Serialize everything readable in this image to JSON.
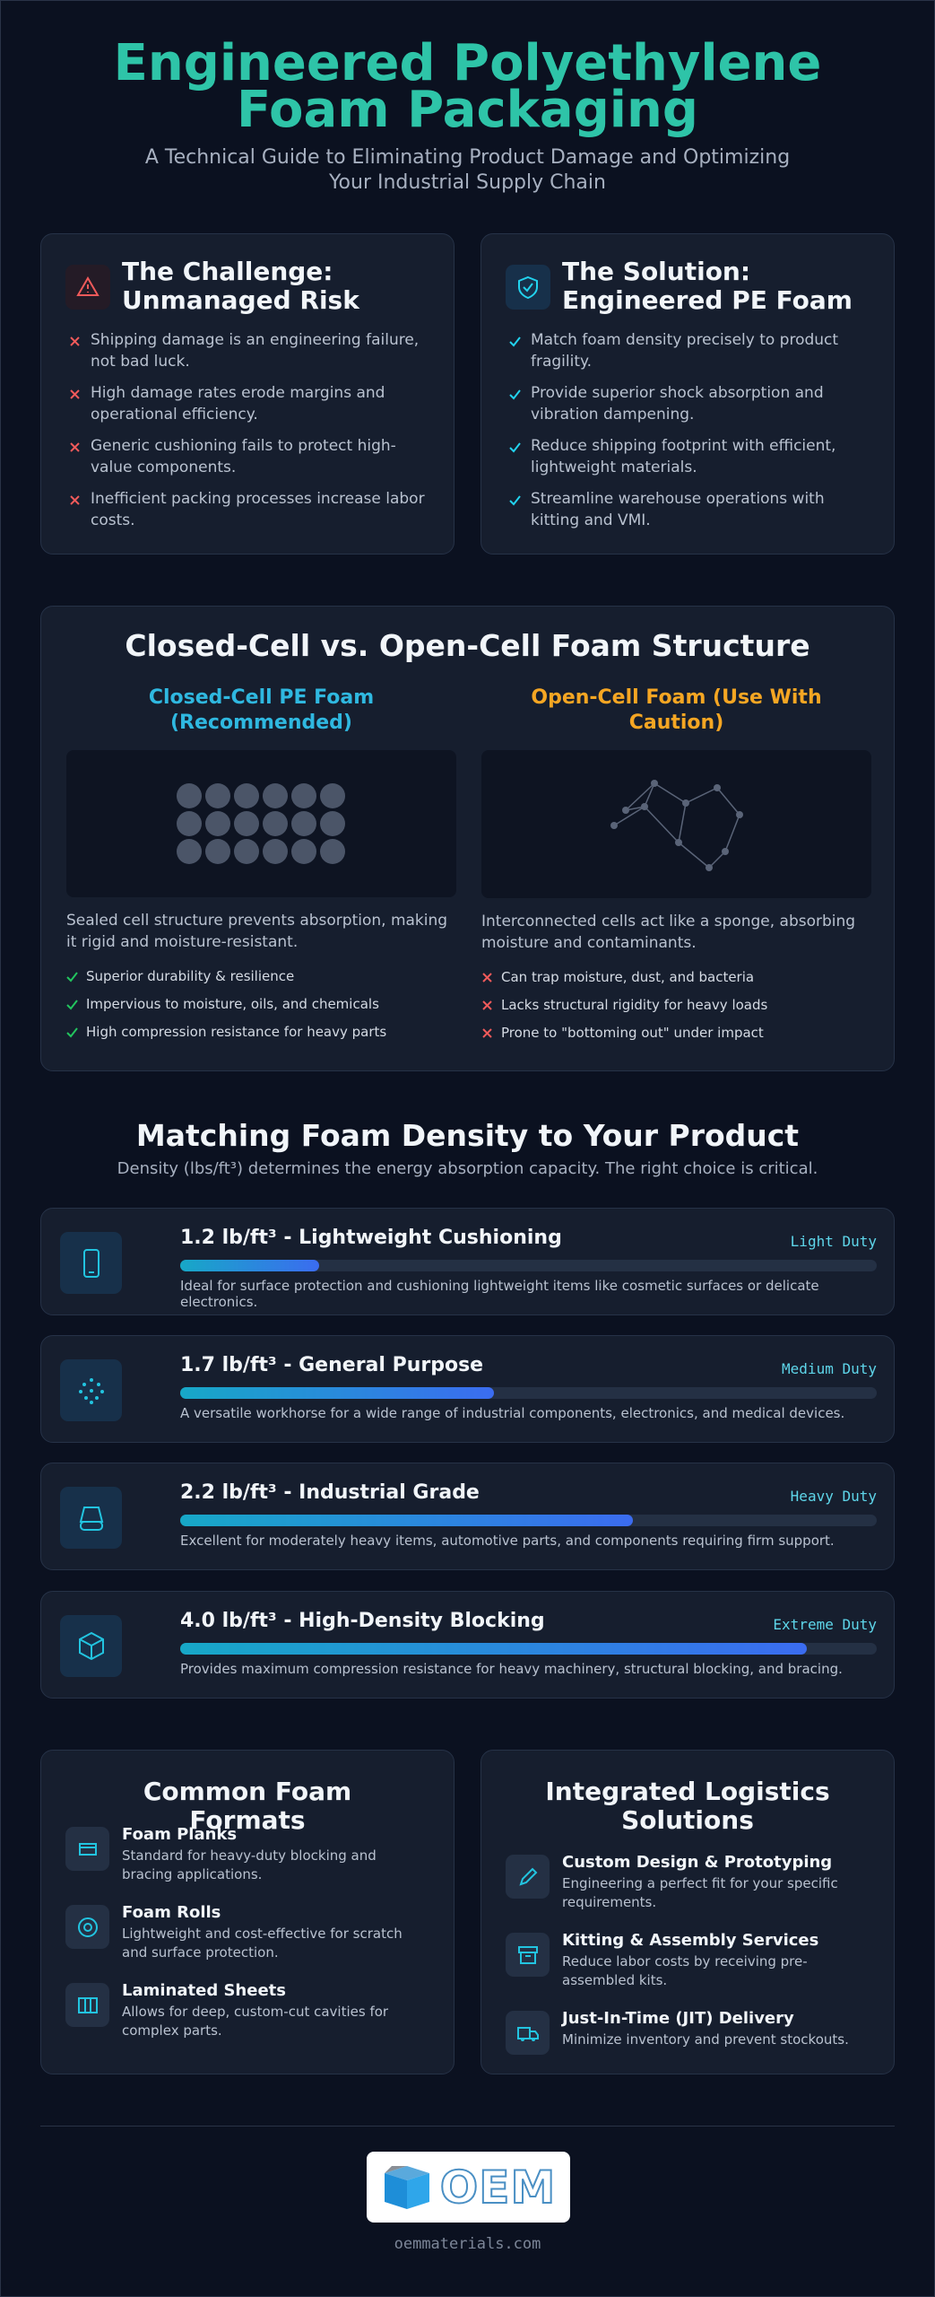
{
  "header": {
    "title": "Engineered Polyethylene Foam Packaging",
    "subtitle": "A Technical Guide to Eliminating Product Damage and Optimizing Your Industrial Supply Chain"
  },
  "challenge": {
    "title": "The Challenge: Unmanaged Risk",
    "items": [
      "Shipping damage is an engineering failure, not bad luck.",
      "High damage rates erode margins and operational efficiency.",
      "Generic cushioning fails to protect high-value components.",
      "Inefficient packing processes increase labor costs."
    ]
  },
  "solution": {
    "title": "The Solution: Engineered PE Foam",
    "items": [
      "Match foam density precisely to product fragility.",
      "Provide superior shock absorption and vibration dampening.",
      "Reduce shipping footprint with efficient, lightweight materials.",
      "Streamline warehouse operations with kitting and VMI."
    ]
  },
  "structure": {
    "title": "Closed-Cell vs. Open-Cell Foam Structure",
    "closed": {
      "title": "Closed-Cell PE Foam (Recommended)",
      "description": "Sealed cell structure prevents absorption, making it rigid and moisture-resistant.",
      "items": [
        "Superior durability & resilience",
        "Impervious to moisture, oils, and chemicals",
        "High compression resistance for heavy parts"
      ]
    },
    "open": {
      "title": "Open-Cell Foam (Use With Caution)",
      "description": "Interconnected cells act like a sponge, absorbing moisture and contaminants.",
      "items": [
        "Can trap moisture, dust, and bacteria",
        "Lacks structural rigidity for heavy loads",
        "Prone to \"bottoming out\" under impact"
      ]
    }
  },
  "density": {
    "title": "Matching Foam Density to Your Product",
    "subtitle": "Density (lbs/ft³) determines the energy absorption capacity. The right choice is critical.",
    "items": [
      {
        "title": "1.2 lb/ft³ - Lightweight Cushioning",
        "duty": "Light Duty",
        "description": "Ideal for surface protection and cushioning lightweight items like cosmetic surfaces or delicate electronics."
      },
      {
        "title": "1.7 lb/ft³ - General Purpose",
        "duty": "Medium Duty",
        "description": "A versatile workhorse for a wide range of industrial components, electronics, and medical devices."
      },
      {
        "title": "2.2 lb/ft³ - Industrial Grade",
        "duty": "Heavy Duty",
        "description": "Excellent for moderately heavy items, automotive parts, and components requiring firm support."
      },
      {
        "title": "4.0 lb/ft³ - High-Density Blocking",
        "duty": "Extreme Duty",
        "description": "Provides maximum compression resistance for heavy machinery, structural blocking, and bracing."
      }
    ]
  },
  "formats": {
    "title": "Common Foam Formats",
    "items": [
      {
        "title": "Foam Planks",
        "description": "Standard for heavy-duty blocking and bracing applications."
      },
      {
        "title": "Foam Rolls",
        "description": "Lightweight and cost-effective for scratch and surface protection."
      },
      {
        "title": "Laminated Sheets",
        "description": "Allows for deep, custom-cut cavities for complex parts."
      }
    ]
  },
  "logistics": {
    "title": "Integrated Logistics Solutions",
    "items": [
      {
        "title": "Custom Design & Prototyping",
        "description": "Engineering a perfect fit for your specific requirements."
      },
      {
        "title": "Kitting & Assembly Services",
        "description": "Reduce labor costs by receiving pre-assembled kits."
      },
      {
        "title": "Just-In-Time (JIT) Delivery",
        "description": "Minimize inventory and prevent stockouts."
      }
    ]
  },
  "footer": {
    "logo_text": "OEM",
    "url": "oemmaterials.com"
  }
}
